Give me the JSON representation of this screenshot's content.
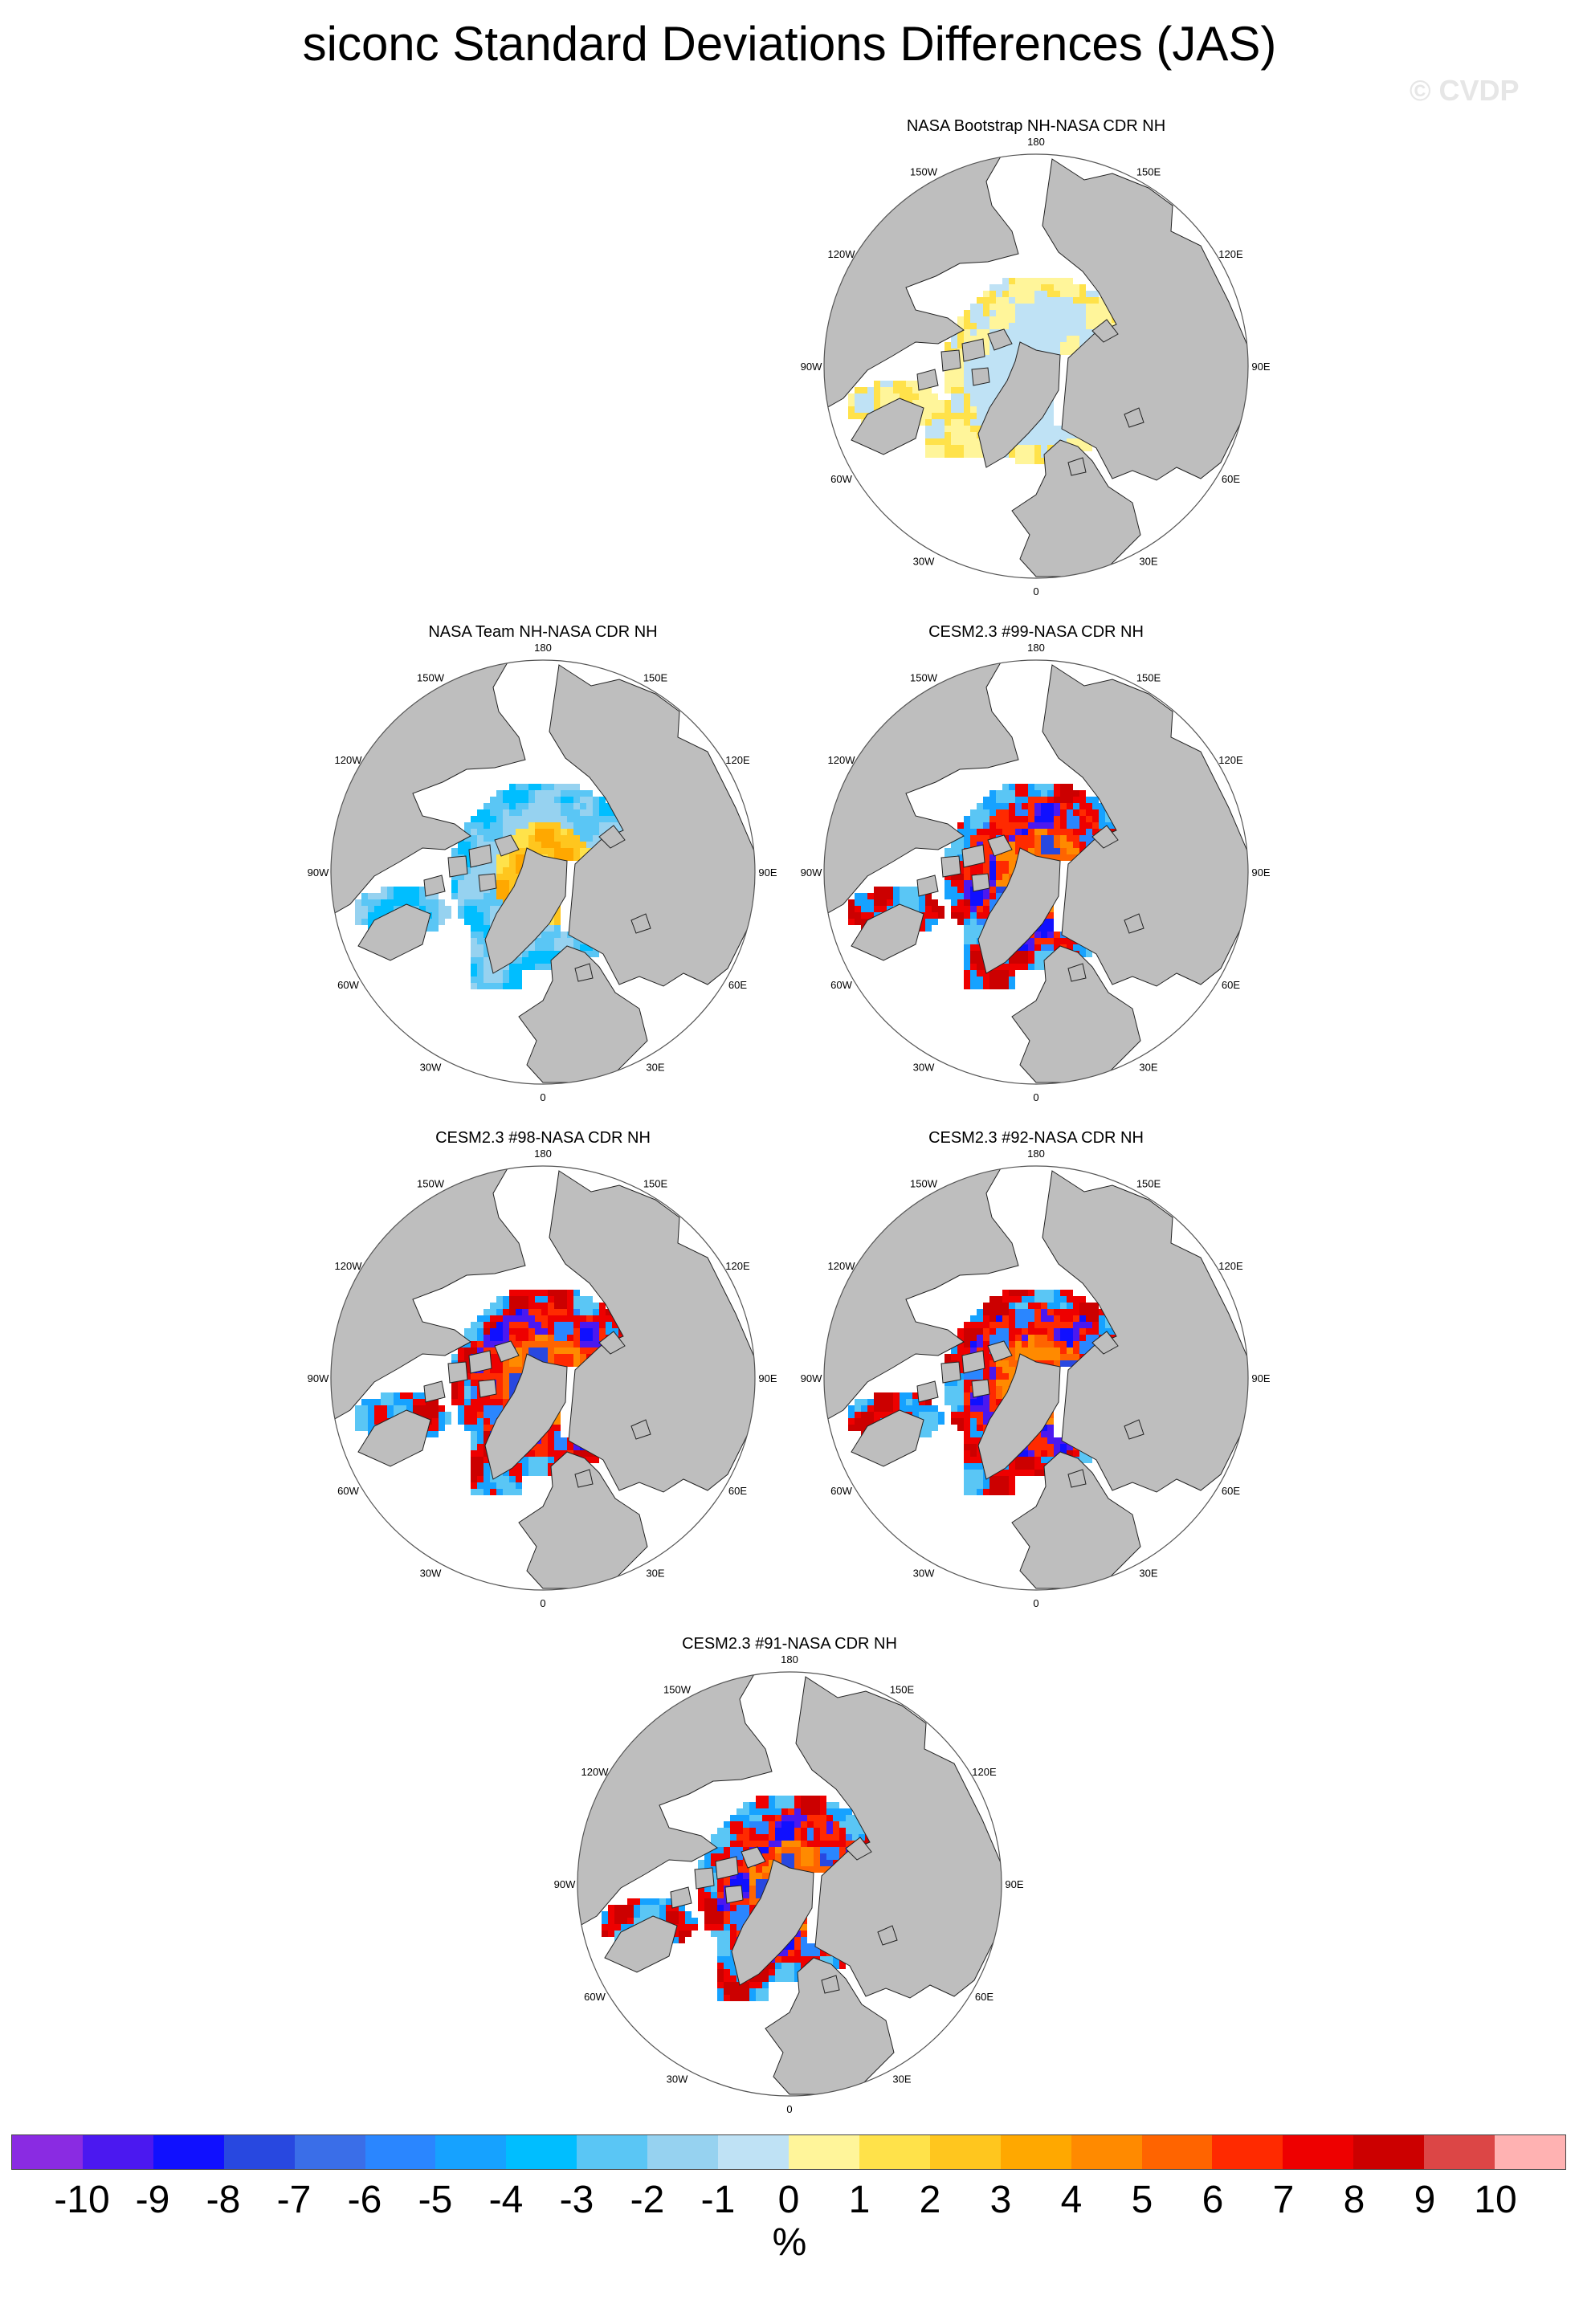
{
  "title": "siconc Standard Deviations Differences (JAS)",
  "watermark": "© CVDP",
  "longitude_labels": [
    "180",
    "150E",
    "120E",
    "90E",
    "60E",
    "30E",
    "0",
    "30W",
    "60W",
    "90W",
    "120W",
    "150W"
  ],
  "projection": "polar-stereographic-north",
  "panels": [
    {
      "id": "bootstrap",
      "title": "NASA Bootstrap NH-NASA CDR NH",
      "pattern": "weak-mixed"
    },
    {
      "id": "team",
      "title": "NASA Team NH-NASA CDR NH",
      "pattern": "negative-rim-positive-center"
    },
    {
      "id": "m99",
      "title": "CESM2.3 #99-NASA CDR NH",
      "pattern": "model"
    },
    {
      "id": "m98",
      "title": "CESM2.3 #98-NASA CDR NH",
      "pattern": "model"
    },
    {
      "id": "m92",
      "title": "CESM2.3 #92-NASA CDR NH",
      "pattern": "model"
    },
    {
      "id": "m91",
      "title": "CESM2.3 #91-NASA CDR NH",
      "pattern": "model"
    }
  ],
  "colorbar": {
    "colors": [
      "#8a2be2",
      "#4b18f0",
      "#1010ff",
      "#2848e0",
      "#3a6ee8",
      "#2a86ff",
      "#16a2ff",
      "#00beff",
      "#5ac6f5",
      "#96d2f0",
      "#bfe2f5",
      "#fff59a",
      "#ffe24a",
      "#ffc61e",
      "#ffa800",
      "#ff8a00",
      "#ff6400",
      "#ff2a00",
      "#ee0000",
      "#cc0000",
      "#dc4646",
      "#ffb2b2"
    ],
    "tick_labels": [
      "-10",
      "-9",
      "-8",
      "-7",
      "-6",
      "-5",
      "-4",
      "-3",
      "-2",
      "-1",
      "0",
      "1",
      "2",
      "3",
      "4",
      "5",
      "6",
      "7",
      "8",
      "9",
      "10"
    ],
    "unit": "%"
  },
  "colors": {
    "land": "#bebebe",
    "ocean": "#ffffff",
    "coast": "#222222"
  }
}
